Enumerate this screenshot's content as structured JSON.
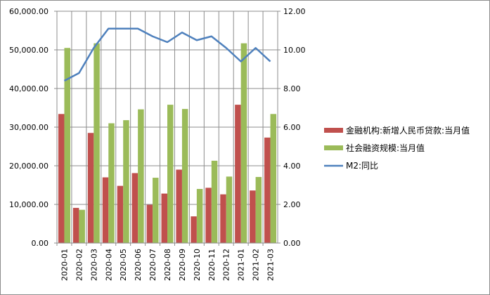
{
  "chart_data": {
    "type": "bar",
    "categories": [
      "2020-01",
      "2020-02",
      "2020-03",
      "2020-04",
      "2020-05",
      "2020-06",
      "2020-07",
      "2020-08",
      "2020-09",
      "2020-10",
      "2020-11",
      "2020-12",
      "2021-01",
      "2021-02",
      "2021-03"
    ],
    "series": [
      {
        "name": "金融机构:新增人民币贷款:当月值",
        "type": "bar",
        "axis": "left",
        "color": "#c0504d",
        "values": [
          33400,
          9100,
          28500,
          17000,
          14800,
          18100,
          9900,
          12800,
          19000,
          6900,
          14300,
          12600,
          35800,
          13600,
          27300
        ]
      },
      {
        "name": "社会融资规模:当月值",
        "type": "bar",
        "axis": "left",
        "color": "#9bbb59",
        "values": [
          50500,
          8600,
          51700,
          31000,
          31800,
          34600,
          16900,
          35800,
          34700,
          14000,
          21300,
          17200,
          51700,
          17100,
          33400
        ]
      },
      {
        "name": "M2:同比",
        "type": "line",
        "axis": "right",
        "color": "#4f81bd",
        "values": [
          8.4,
          8.8,
          10.1,
          11.1,
          11.1,
          11.1,
          10.7,
          10.4,
          10.9,
          10.5,
          10.7,
          10.1,
          9.4,
          10.1,
          9.4
        ]
      }
    ],
    "y_left": {
      "ylim": [
        0,
        60000
      ],
      "ticks": [
        "0.00",
        "10,000.00",
        "20,000.00",
        "30,000.00",
        "40,000.00",
        "50,000.00",
        "60,000.00"
      ]
    },
    "y_right": {
      "ylim": [
        0,
        12
      ],
      "ticks": [
        "0.00",
        "2.00",
        "4.00",
        "6.00",
        "8.00",
        "10.00",
        "12.00"
      ]
    },
    "title": "",
    "xlabel": "",
    "ylabel": "",
    "grid": true,
    "legend_position": "right"
  }
}
